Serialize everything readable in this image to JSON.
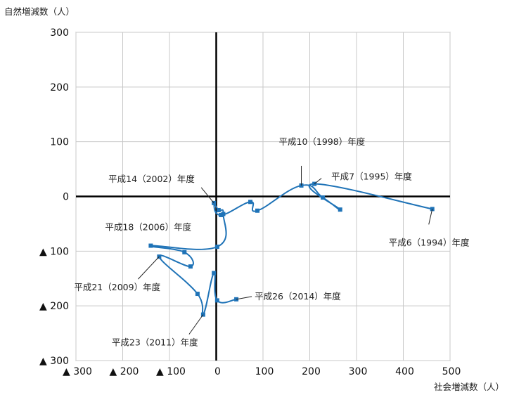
{
  "chart_data": {
    "type": "scatter",
    "ylabel": "自然増減数（人）",
    "xlabel": "社会増減数（人）",
    "xlim": [
      -300,
      500
    ],
    "ylim": [
      -300,
      300
    ],
    "x_ticks": [
      {
        "value": -300,
        "label": "▲ 300"
      },
      {
        "value": -200,
        "label": "▲ 200"
      },
      {
        "value": -100,
        "label": "▲ 100"
      },
      {
        "value": 0,
        "label": "0"
      },
      {
        "value": 100,
        "label": "100"
      },
      {
        "value": 200,
        "label": "200"
      },
      {
        "value": 300,
        "label": "300"
      },
      {
        "value": 400,
        "label": "400"
      },
      {
        "value": 500,
        "label": "500"
      }
    ],
    "y_ticks": [
      {
        "value": 300,
        "label": "300"
      },
      {
        "value": 200,
        "label": "200"
      },
      {
        "value": 100,
        "label": "100"
      },
      {
        "value": 0,
        "label": "0"
      },
      {
        "value": -100,
        "label": "▲ 100"
      },
      {
        "value": -200,
        "label": "▲ 200"
      },
      {
        "value": -300,
        "label": "▲ 300"
      }
    ],
    "grid": true,
    "colors": {
      "series": "#1f73b7",
      "axis": "#000000",
      "grid": "#c8c8c8"
    },
    "series": [
      {
        "points": [
          {
            "x": 462,
            "y": -23
          },
          {
            "x": 210,
            "y": 23
          },
          {
            "x": 265,
            "y": -24
          },
          {
            "x": 228,
            "y": -2
          },
          {
            "x": 182,
            "y": 20
          },
          {
            "x": 88,
            "y": -26
          },
          {
            "x": 73,
            "y": -10
          },
          {
            "x": 10,
            "y": -34
          },
          {
            "x": -5,
            "y": -12
          },
          {
            "x": 5,
            "y": -25
          },
          {
            "x": 15,
            "y": -32
          },
          {
            "x": 2,
            "y": -92
          },
          {
            "x": -140,
            "y": -90
          },
          {
            "x": -68,
            "y": -102
          },
          {
            "x": -55,
            "y": -128
          },
          {
            "x": -122,
            "y": -110
          },
          {
            "x": -40,
            "y": -178
          },
          {
            "x": -28,
            "y": -216
          },
          {
            "x": -5,
            "y": -140
          },
          {
            "x": 2,
            "y": -190
          },
          {
            "x": 43,
            "y": -188
          }
        ]
      }
    ],
    "annotations": [
      {
        "text": "平成6（1994）年度",
        "x": 462,
        "y": -23
      },
      {
        "text": "平成7（1995）年度",
        "x": 210,
        "y": 23
      },
      {
        "text": "平成10（1998）年度",
        "x": 182,
        "y": 20
      },
      {
        "text": "平成14（2002）年度",
        "x": -5,
        "y": -12
      },
      {
        "text": "平成18（2006）年度",
        "x": -140,
        "y": -90
      },
      {
        "text": "平成21（2009）年度",
        "x": -122,
        "y": -110
      },
      {
        "text": "平成23（2011）年度",
        "x": -28,
        "y": -216
      },
      {
        "text": "平成26（2014）年度",
        "x": 43,
        "y": -188
      }
    ]
  }
}
